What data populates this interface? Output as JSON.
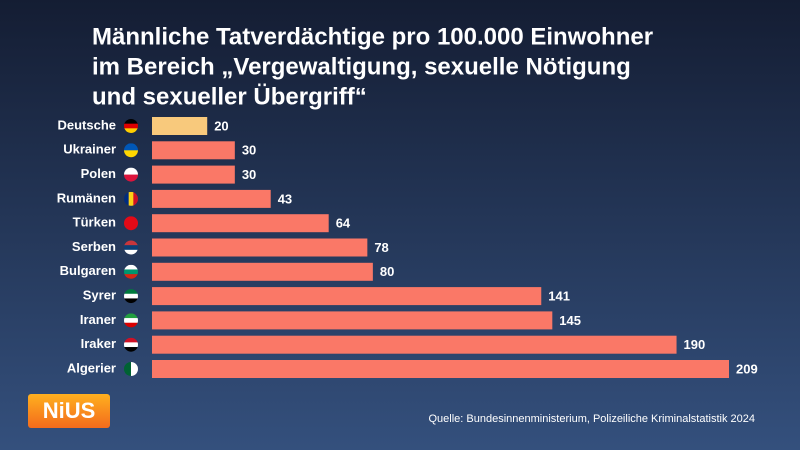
{
  "chart_data": {
    "type": "bar",
    "orientation": "horizontal",
    "title": [
      "Männliche Tatverdächtige pro 100.000 Einwohner",
      "im Bereich „Vergewaltigung, sexuelle Nötigung",
      "und sexueller Übergriff“"
    ],
    "categories": [
      "Deutsche",
      "Ukrainer",
      "Polen",
      "Rumänen",
      "Türken",
      "Serben",
      "Bulgaren",
      "Syrer",
      "Iraner",
      "Iraker",
      "Algerier"
    ],
    "values": [
      20,
      30,
      30,
      43,
      64,
      78,
      80,
      141,
      145,
      190,
      209
    ],
    "colors": [
      "#f8c97c",
      "#fa7867",
      "#fa7867",
      "#fa7867",
      "#fa7867",
      "#fa7867",
      "#fa7867",
      "#fa7867",
      "#fa7867",
      "#fa7867",
      "#fa7867"
    ],
    "source": "Quelle: Bundesinnenministerium, Polizeiliche Kriminalstatistik 2024",
    "logo": "NiUS"
  }
}
